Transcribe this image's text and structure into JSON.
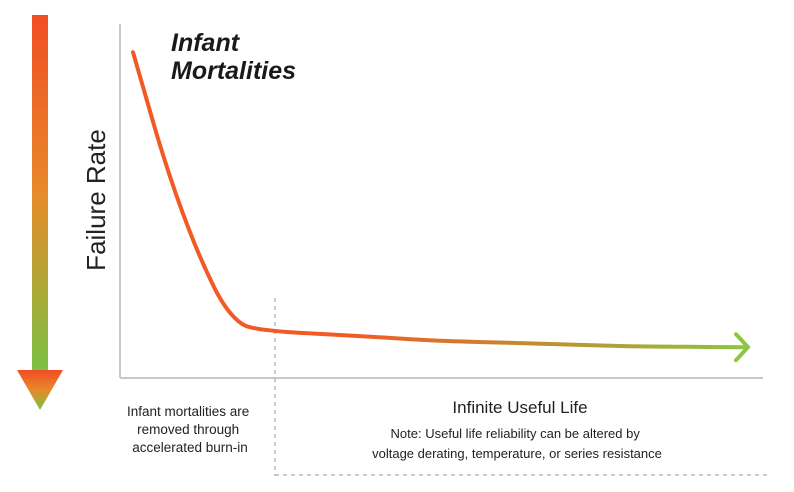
{
  "chart_data": {
    "type": "line",
    "title": "Infant Mortalities",
    "ylabel": "Failure Rate",
    "xlabel": "",
    "grid": false,
    "legend": "none",
    "series": [
      {
        "x": [
          0.0,
          0.02,
          0.04,
          0.06,
          0.08,
          0.1,
          0.12,
          0.14,
          0.16,
          0.18,
          0.2,
          0.22,
          0.25,
          0.3,
          0.4,
          0.5,
          0.6,
          0.7,
          0.8,
          0.9,
          1.0
        ],
        "values": [
          0.92,
          0.8,
          0.68,
          0.57,
          0.47,
          0.38,
          0.3,
          0.23,
          0.18,
          0.15,
          0.14,
          0.135,
          0.13,
          0.125,
          0.115,
          0.105,
          0.1,
          0.095,
          0.09,
          0.088,
          0.087
        ]
      }
    ],
    "xlim": [
      0,
      1
    ],
    "ylim": [
      0,
      1
    ],
    "annotations": {
      "left_caption": [
        "Infant mortalities are",
        "removed through",
        "accelerated burn-in"
      ],
      "right_title": "Infinite Useful Life",
      "right_note": [
        "Note: Useful life reliability can be altered by",
        "voltage derating, temperature, or series resistance"
      ]
    },
    "colors": {
      "arrow_top": "#f04e23",
      "arrow_mid": "#e88a2a",
      "arrow_bottom": "#7bc142",
      "curve_start": "#f15a24",
      "curve_end": "#8dc63f",
      "axis": "#c8c8c8",
      "divider": "#b8b8b8",
      "text": "#222222"
    },
    "icons": [
      "down-arrow-gradient-icon",
      "right-arrowhead-icon"
    ]
  }
}
